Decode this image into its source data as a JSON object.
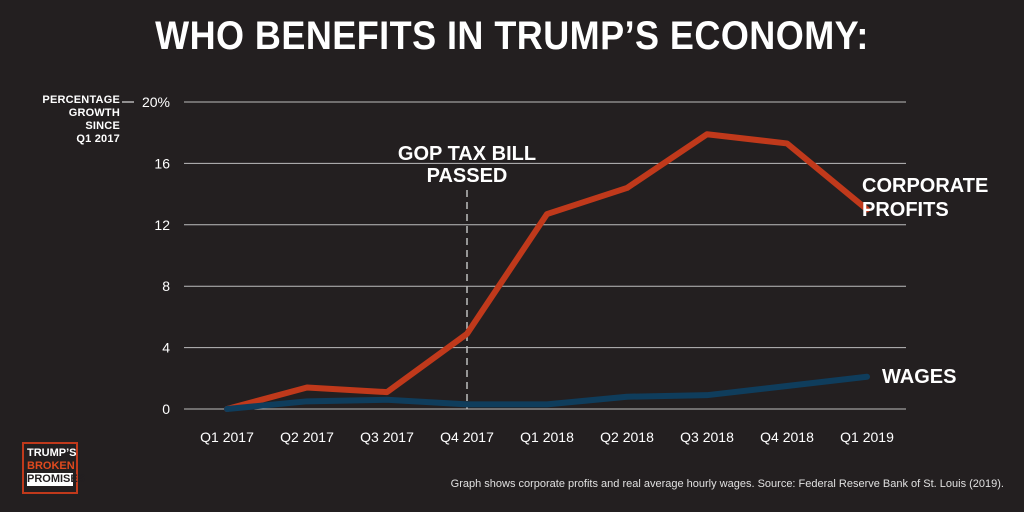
{
  "title": "WHO BENEFITS IN TRUMP’S ECONOMY:",
  "y_axis_note": [
    "PERCENTAGE",
    "GROWTH SINCE",
    "Q1 2017"
  ],
  "annotation_event": [
    "GOP TAX BILL",
    "PASSED"
  ],
  "source": "Graph shows corporate profits and real average hourly wages. Source: Federal Reserve Bank of St. Louis (2019).",
  "logo": [
    "TRUMP’S",
    "BROKEN",
    "PROMISES"
  ],
  "colors": {
    "background": "#231f20",
    "profits": "#c0391b",
    "wages": "#0f3d5c",
    "grid": "#bdbdbd"
  },
  "chart_data": {
    "type": "line",
    "title": "WHO BENEFITS IN TRUMP’S ECONOMY:",
    "ylabel": "PERCENTAGE GROWTH SINCE Q1 2017",
    "ylim": [
      0,
      20
    ],
    "yticks": [
      0,
      4,
      8,
      12,
      16,
      20
    ],
    "ytick_labels": [
      "0",
      "4",
      "8",
      "12",
      "16",
      "20%"
    ],
    "categories": [
      "Q1 2017",
      "Q2 2017",
      "Q3 2017",
      "Q4 2017",
      "Q1 2018",
      "Q2 2018",
      "Q3 2018",
      "Q4 2018",
      "Q1 2019"
    ],
    "series": [
      {
        "name": "CORPORATE PROFITS",
        "label_lines": [
          "CORPORATE",
          "PROFITS"
        ],
        "values": [
          0,
          1.4,
          1.1,
          4.9,
          12.7,
          14.4,
          17.9,
          17.3,
          13.0
        ]
      },
      {
        "name": "WAGES",
        "label_lines": [
          "WAGES"
        ],
        "values": [
          0,
          0.5,
          0.6,
          0.3,
          0.3,
          0.8,
          0.9,
          1.5,
          2.1
        ]
      }
    ],
    "event_marker": {
      "at_index": 3,
      "label": "GOP TAX BILL PASSED"
    },
    "grid": true
  }
}
